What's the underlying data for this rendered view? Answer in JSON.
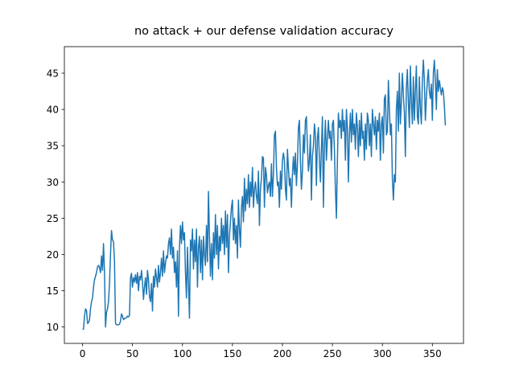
{
  "chart_data": {
    "type": "line",
    "title": "no attack + our defense validation accuracy",
    "series": [
      {
        "color": "#1f77b4",
        "values": [
          9.7,
          9.7,
          11.5,
          12.5,
          12.3,
          10.5,
          10.6,
          11.0,
          12.5,
          13.5,
          14.0,
          15.5,
          16.5,
          17.0,
          17.5,
          18.3,
          18.5,
          18.2,
          17.5,
          19.8,
          17.8,
          21.5,
          17.5,
          10.0,
          12.0,
          12.5,
          13.5,
          16.0,
          20.0,
          23.3,
          22.0,
          21.8,
          19.0,
          10.5,
          10.3,
          10.3,
          10.3,
          10.4,
          10.8,
          11.8,
          11.5,
          11.0,
          11.2,
          11.2,
          11.3,
          11.5,
          11.4,
          11.6,
          16.8,
          17.4,
          15.5,
          16.8,
          16.2,
          17.2,
          16.0,
          17.5,
          15.0,
          17.0,
          16.5,
          17.8,
          16.2,
          13.8,
          15.5,
          16.8,
          14.5,
          17.8,
          16.5,
          14.2,
          13.5,
          16.0,
          12.2,
          17.0,
          15.5,
          18.0,
          16.8,
          15.5,
          18.5,
          16.2,
          17.5,
          19.5,
          17.0,
          20.5,
          17.5,
          18.8,
          19.8,
          19.5,
          21.5,
          22.3,
          20.0,
          23.5,
          19.5,
          21.0,
          17.5,
          19.0,
          15.5,
          20.5,
          11.5,
          21.0,
          24.0,
          21.5,
          24.5,
          22.0,
          23.0,
          17.5,
          14.0,
          21.0,
          16.0,
          11.2,
          22.0,
          20.5,
          23.5,
          18.0,
          22.0,
          19.0,
          23.5,
          15.5,
          21.0,
          22.5,
          17.5,
          22.0,
          16.5,
          22.5,
          20.0,
          18.5,
          24.0,
          19.0,
          28.7,
          22.5,
          17.0,
          21.5,
          16.5,
          23.0,
          19.5,
          25.5,
          20.0,
          24.0,
          18.0,
          22.5,
          20.5,
          25.0,
          21.5,
          24.0,
          20.0,
          26.0,
          21.0,
          25.5,
          17.5,
          22.5,
          24.5,
          26.5,
          27.5,
          22.0,
          25.0,
          21.5,
          24.0,
          19.5,
          27.5,
          23.5,
          21.0,
          26.5,
          28.0,
          24.5,
          30.5,
          26.0,
          29.0,
          27.0,
          31.0,
          26.5,
          30.0,
          28.0,
          32.0,
          26.5,
          29.0,
          30.0,
          28.0,
          27.0,
          31.5,
          24.0,
          29.0,
          30.5,
          33.5,
          33.3,
          26.5,
          32.0,
          31.0,
          28.5,
          29.5,
          30.0,
          28.0,
          32.5,
          28.0,
          31.0,
          36.5,
          37.0,
          32.0,
          29.5,
          30.0,
          26.5,
          31.5,
          29.0,
          33.0,
          34.0,
          33.0,
          29.0,
          27.5,
          34.5,
          32.0,
          29.5,
          30.5,
          26.5,
          31.0,
          33.5,
          31.0,
          34.0,
          29.5,
          32.5,
          37.5,
          38.5,
          33.0,
          29.0,
          31.5,
          36.5,
          34.0,
          38.5,
          39.0,
          35.0,
          31.5,
          33.0,
          36.5,
          27.5,
          33.5,
          35.0,
          38.0,
          36.5,
          29.5,
          36.0,
          37.5,
          33.0,
          30.0,
          34.5,
          39.0,
          26.5,
          35.0,
          38.5,
          33.0,
          36.0,
          38.5,
          36.0,
          37.0,
          33.0,
          38.0,
          38.5,
          34.5,
          29.0,
          25.0,
          33.0,
          39.5,
          37.5,
          38.5,
          36.0,
          40.0,
          37.0,
          38.5,
          33.0,
          40.0,
          37.5,
          30.0,
          36.5,
          39.5,
          35.5,
          40.0,
          36.5,
          38.0,
          34.5,
          39.5,
          37.5,
          33.5,
          38.5,
          35.0,
          39.5,
          36.0,
          37.0,
          33.0,
          38.0,
          34.5,
          39.5,
          38.5,
          35.0,
          38.0,
          33.5,
          40.0,
          38.0,
          36.5,
          39.0,
          34.5,
          38.5,
          37.0,
          39.5,
          33.0,
          38.0,
          39.0,
          34.0,
          41.5,
          42.0,
          36.5,
          37.0,
          44.0,
          40.0,
          36.5,
          38.0,
          30.5,
          27.5,
          31.0,
          30.0,
          40.0,
          42.5,
          37.0,
          45.0,
          38.0,
          41.0,
          45.0,
          42.0,
          39.5,
          33.5,
          43.0,
          45.5,
          41.0,
          37.5,
          46.0,
          41.0,
          38.0,
          44.5,
          38.5,
          42.5,
          46.0,
          39.0,
          38.0,
          44.5,
          40.0,
          38.0,
          44.0,
          46.8,
          44.0,
          38.5,
          41.5,
          44.0,
          45.5,
          42.5,
          41.5,
          43.5,
          38.5,
          45.0,
          46.8,
          44.0,
          40.0,
          45.5,
          42.5,
          44.0,
          43.0,
          42.0,
          43.0,
          42.5,
          40.5,
          37.8
        ]
      }
    ],
    "xlim": [
      -18.15,
      381.15
    ],
    "xticks": [
      0,
      50,
      100,
      150,
      200,
      250,
      300,
      350
    ],
    "ylim": [
      7.74,
      48.66
    ],
    "yticks": [
      10,
      15,
      20,
      25,
      30,
      35,
      40,
      45
    ]
  }
}
